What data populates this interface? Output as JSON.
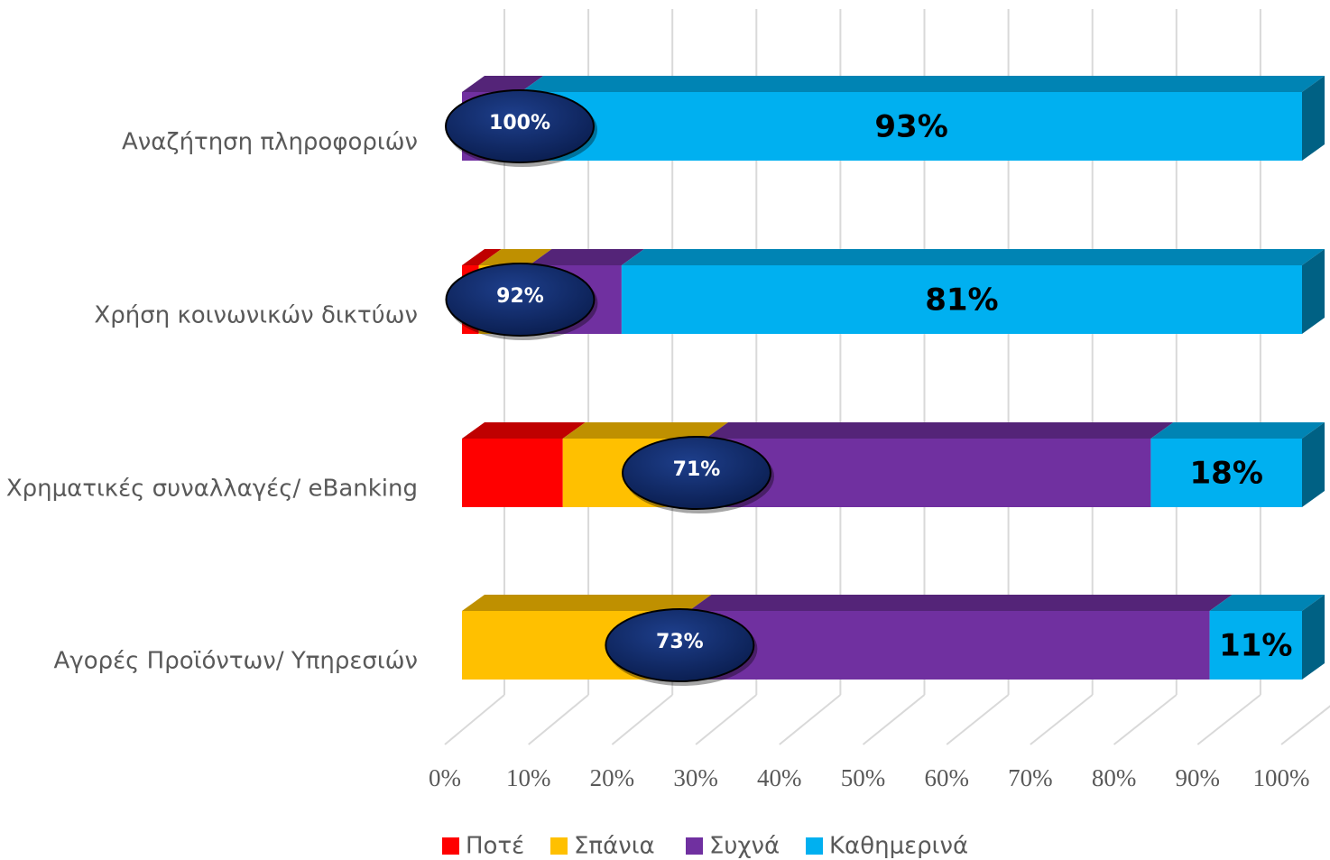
{
  "chart_data": {
    "type": "bar",
    "orientation": "horizontal",
    "stacked": true,
    "categories": [
      "Αναζήτηση πληροφοριών",
      "Χρήση κοινωνικών δικτύων",
      "Χρηματικές συναλλαγές/ eBanking",
      "Αγορές Προϊόντων/ Υπηρεσιών"
    ],
    "series": [
      {
        "name": "Ποτέ",
        "color": "#ff0000",
        "values": [
          0,
          2,
          12,
          0
        ]
      },
      {
        "name": "Σπάνια",
        "color": "#ffc000",
        "values": [
          0,
          6,
          17,
          27
        ]
      },
      {
        "name": "Συχνά",
        "color": "#7030a0",
        "values": [
          7,
          11,
          53,
          62
        ]
      },
      {
        "name": "Καθημερινά",
        "color": "#00b0f0",
        "values": [
          93,
          81,
          18,
          11
        ],
        "value_labels": [
          "93%",
          "81%",
          "18%",
          "11%"
        ]
      }
    ],
    "annotations": [
      {
        "value": 100,
        "label": "100%"
      },
      {
        "value": 92,
        "label": "92%"
      },
      {
        "value": 71,
        "label": "71%"
      },
      {
        "value": 73,
        "label": "73%"
      }
    ],
    "xlim": [
      0,
      100
    ],
    "xticks": [
      {
        "value": 0,
        "label": "0%"
      },
      {
        "value": 10,
        "label": "10%"
      },
      {
        "value": 20,
        "label": "20%"
      },
      {
        "value": 30,
        "label": "30%"
      },
      {
        "value": 40,
        "label": "40%"
      },
      {
        "value": 50,
        "label": "50%"
      },
      {
        "value": 60,
        "label": "60%"
      },
      {
        "value": 70,
        "label": "70%"
      },
      {
        "value": 80,
        "label": "80%"
      },
      {
        "value": 90,
        "label": "90%"
      },
      {
        "value": 100,
        "label": "100%"
      }
    ],
    "grid": true,
    "legend": "bottom"
  }
}
